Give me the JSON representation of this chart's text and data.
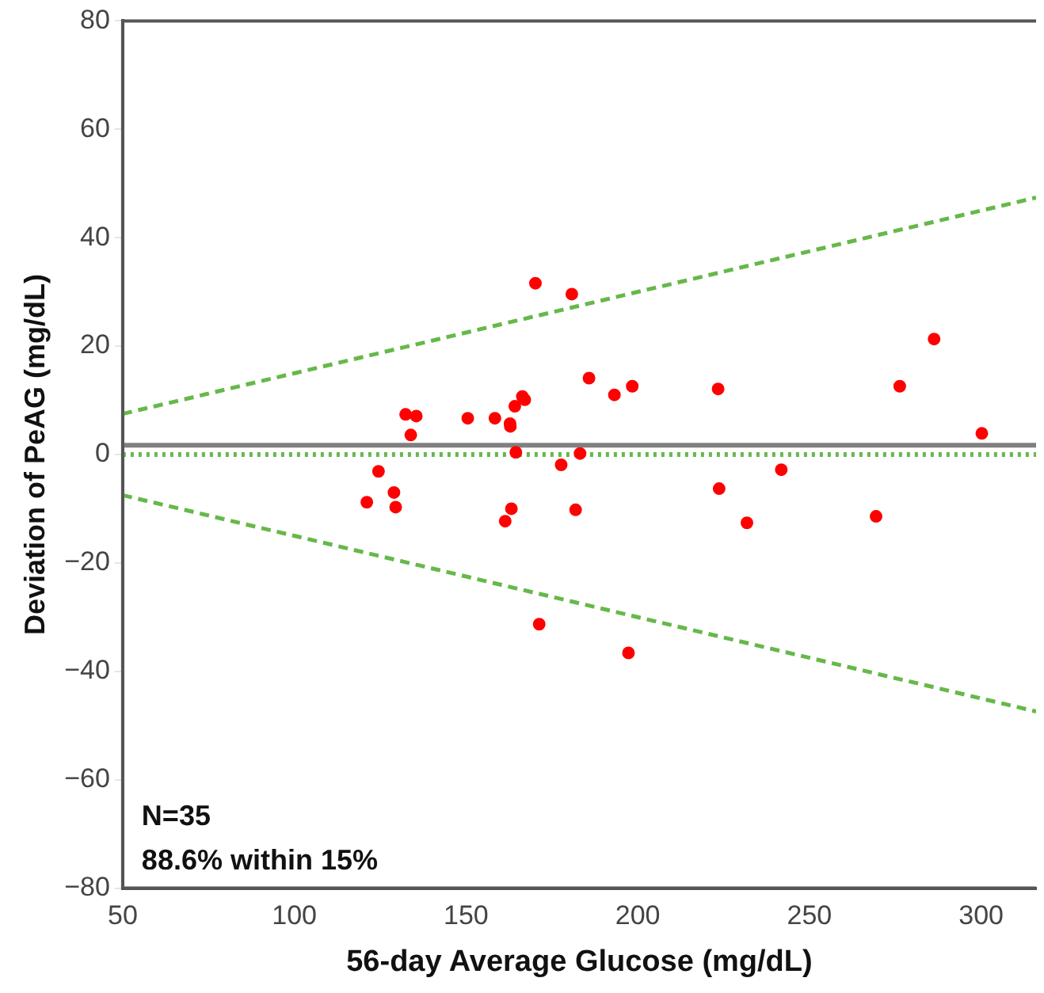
{
  "chart_data": {
    "type": "scatter",
    "xlabel": "56-day Average Glucose (mg/dL)",
    "ylabel": "Deviation of PeAG (mg/dL)",
    "xlim": [
      50,
      316
    ],
    "xticks": [
      50,
      100,
      150,
      200,
      250,
      300
    ],
    "ylim": [
      -80,
      80
    ],
    "yticks": [
      {
        "value": -80,
        "label": "−80"
      },
      {
        "value": -60,
        "label": "−60"
      },
      {
        "value": -40,
        "label": "−40"
      },
      {
        "value": -20,
        "label": "−20"
      },
      0,
      20,
      40,
      60,
      80
    ],
    "grid": false,
    "legend": false,
    "series": [
      {
        "marker": "circle",
        "color": "#ff0000",
        "x": [
          132.4,
          135.5,
          133.9,
          124.5,
          121.1,
          129,
          129.5,
          170.2,
          180.8,
          185.8,
          193.2,
          198.4,
          223.4,
          150.5,
          158.4,
          162.8,
          162.9,
          164.2,
          166.4,
          167.1,
          164.5,
          183.2,
          177.7,
          163.2,
          161.4,
          181.9,
          171.3,
          223.7,
          286.3,
          276.3,
          300.2,
          241.8,
          231.8,
          269.4,
          197.3
        ],
        "values": [
          7.4,
          7.1,
          3.6,
          -3.1,
          -8.8,
          -7,
          -9.7,
          31.6,
          29.6,
          14.1,
          11,
          12.6,
          12.1,
          6.7,
          6.7,
          5.7,
          5.2,
          8.9,
          10.7,
          10.1,
          0.4,
          0.2,
          -1.9,
          -10,
          -12.3,
          -10.2,
          -31.3,
          -6.3,
          21.3,
          12.6,
          3.9,
          -2.8,
          -12.6,
          -11.4,
          -36.6
        ]
      },
      {
        "type": "line",
        "marker": "none",
        "color": "#66b84a",
        "line_style": "dashed",
        "x": [
          50,
          316
        ],
        "values": [
          7.5,
          47.4
        ]
      },
      {
        "type": "line",
        "marker": "none",
        "color": "#66b84a",
        "line_style": "dashed",
        "x": [
          50,
          316
        ],
        "values": [
          -7.5,
          -47.4
        ]
      }
    ],
    "ref_lines": [
      {
        "axis": "y",
        "value": 1.7,
        "label": null,
        "color": "#808080",
        "line_style": "solid"
      },
      {
        "axis": "y",
        "value": 0,
        "label": null,
        "color": "#66b84a",
        "line_style": "dotted"
      }
    ],
    "annotations": [
      "N=35",
      "88.6% within 15%"
    ]
  }
}
